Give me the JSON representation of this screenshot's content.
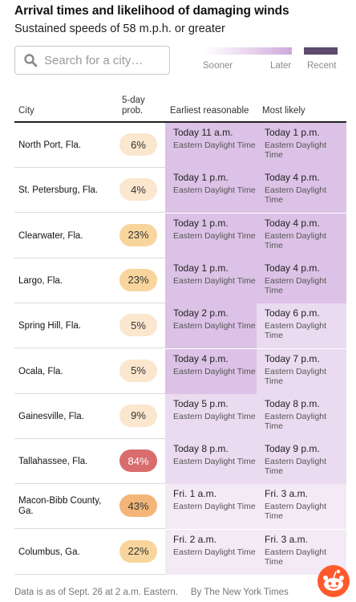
{
  "header": {
    "title": "Arrival times and likelihood of damaging winds",
    "subtitle": "Sustained speeds of 58 m.p.h. or greater"
  },
  "search": {
    "placeholder": "Search for a city…",
    "value": ""
  },
  "legend": {
    "sooner": "Sooner",
    "later": "Later",
    "recent": "Recent",
    "gradient_colors": [
      "#ffffff",
      "#ead7ef",
      "#cfa8db"
    ],
    "recent_color": "#5d4a6e"
  },
  "table": {
    "columns": {
      "city": "City",
      "prob_line1": "5-day",
      "prob_line2": "prob.",
      "earliest": "Earliest reasonable",
      "likely": "Most likely"
    },
    "rows": [
      {
        "city": "North Port, Fla.",
        "prob": "6%",
        "prob_color": "#fbe6ce",
        "earliest": "Today 11 a.m.",
        "earliest_tz": "Eastern Daylight Time",
        "earliest_color": "#dcc2e6",
        "likely": "Today 1 p.m.",
        "likely_tz": "Eastern Daylight Time",
        "likely_color": "#dcc2e6"
      },
      {
        "city": "St. Petersburg, Fla.",
        "prob": "4%",
        "prob_color": "#fbe6ce",
        "earliest": "Today 1 p.m.",
        "earliest_tz": "Eastern Daylight Time",
        "earliest_color": "#dcc2e6",
        "likely": "Today 4 p.m.",
        "likely_tz": "Eastern Daylight Time",
        "likely_color": "#dcc2e6"
      },
      {
        "city": "Clearwater, Fla.",
        "prob": "23%",
        "prob_color": "#f8d59c",
        "earliest": "Today 1 p.m.",
        "earliest_tz": "Eastern Daylight Time",
        "earliest_color": "#dcc2e6",
        "likely": "Today 4 p.m.",
        "likely_tz": "Eastern Daylight Time",
        "likely_color": "#dcc2e6"
      },
      {
        "city": "Largo, Fla.",
        "prob": "23%",
        "prob_color": "#f8d59c",
        "earliest": "Today 1 p.m.",
        "earliest_tz": "Eastern Daylight Time",
        "earliest_color": "#dcc2e6",
        "likely": "Today 4 p.m.",
        "likely_tz": "Eastern Daylight Time",
        "likely_color": "#dcc2e6"
      },
      {
        "city": "Spring Hill, Fla.",
        "prob": "5%",
        "prob_color": "#fbe6ce",
        "earliest": "Today 2 p.m.",
        "earliest_tz": "Eastern Daylight Time",
        "earliest_color": "#dcc2e6",
        "likely": "Today 6 p.m.",
        "likely_tz": "Eastern Daylight Time",
        "likely_color": "#eadbf0"
      },
      {
        "city": "Ocala, Fla.",
        "prob": "5%",
        "prob_color": "#fbe6ce",
        "earliest": "Today 4 p.m.",
        "earliest_tz": "Eastern Daylight Time",
        "earliest_color": "#dcc2e6",
        "likely": "Today 7 p.m.",
        "likely_tz": "Eastern Daylight Time",
        "likely_color": "#eadbf0"
      },
      {
        "city": "Gainesville, Fla.",
        "prob": "9%",
        "prob_color": "#fbe6ce",
        "earliest": "Today 5 p.m.",
        "earliest_tz": "Eastern Daylight Time",
        "earliest_color": "#eadbf0",
        "likely": "Today 8 p.m.",
        "likely_tz": "Eastern Daylight Time",
        "likely_color": "#eadbf0"
      },
      {
        "city": "Tallahassee, Fla.",
        "prob": "84%",
        "prob_color": "#d96c6c",
        "earliest": "Today 8 p.m.",
        "earliest_tz": "Eastern Daylight Time",
        "earliest_color": "#eadbf0",
        "likely": "Today 9 p.m.",
        "likely_tz": "Eastern Daylight Time",
        "likely_color": "#eadbf0"
      },
      {
        "city": "Macon-Bibb County, Ga.",
        "prob": "43%",
        "prob_color": "#f3b678",
        "earliest": "Fri. 1 a.m.",
        "earliest_tz": "Eastern Daylight Time",
        "earliest_color": "#f3eaf6",
        "likely": "Fri. 3 a.m.",
        "likely_tz": "Eastern Daylight Time",
        "likely_color": "#f3eaf6"
      },
      {
        "city": "Columbus, Ga.",
        "prob": "22%",
        "prob_color": "#f8d59c",
        "earliest": "Fri. 2 a.m.",
        "earliest_tz": "Eastern Daylight Time",
        "earliest_color": "#f3eaf6",
        "likely": "Fri. 3 a.m.",
        "likely_tz": "Eastern Daylight Time",
        "likely_color": "#f3eaf6"
      }
    ]
  },
  "footer": {
    "note": "Data is as of Sept. 26 at 2 a.m. Eastern.",
    "credit": "By The New York Times"
  }
}
